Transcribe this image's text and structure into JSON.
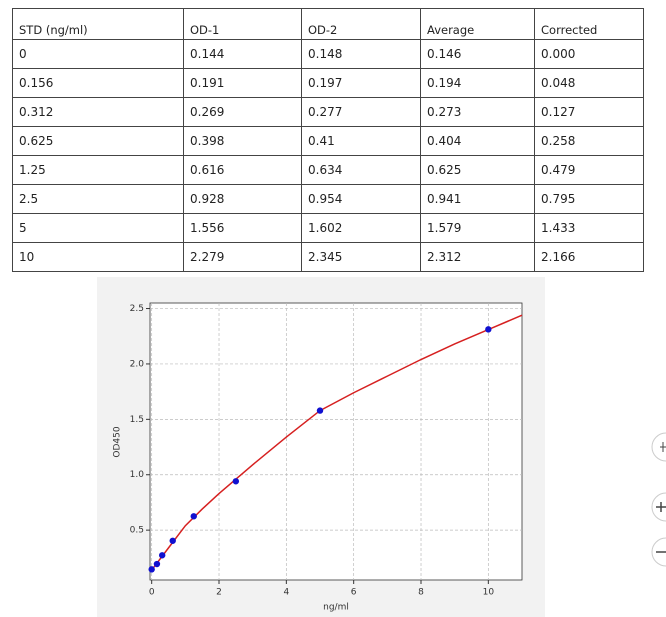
{
  "table": {
    "header": [
      "STD (ng/ml)",
      "OD-1",
      "OD-2",
      "Average",
      "Corrected"
    ],
    "rows": [
      [
        "0",
        "0.144",
        "0.148",
        "0.146",
        "0.000"
      ],
      [
        "0.156",
        "0.191",
        "0.197",
        "0.194",
        "0.048"
      ],
      [
        "0.312",
        "0.269",
        "0.277",
        "0.273",
        "0.127"
      ],
      [
        "0.625",
        "0.398",
        "0.41",
        "0.404",
        "0.258"
      ],
      [
        "1.25",
        "0.616",
        "0.634",
        "0.625",
        "0.479"
      ],
      [
        "2.5",
        "0.928",
        "0.954",
        "0.941",
        "0.795"
      ],
      [
        "5",
        "1.556",
        "1.602",
        "1.579",
        "1.433"
      ],
      [
        "10",
        "2.279",
        "2.345",
        "2.312",
        "2.166"
      ]
    ]
  },
  "chart_data": {
    "type": "scatter",
    "x_label": "ng/ml",
    "y_label": "OD450",
    "xlim": [
      -0.05,
      11
    ],
    "ylim": [
      0.05,
      2.55
    ],
    "xticks": [
      0,
      2,
      4,
      6,
      8,
      10
    ],
    "yticks": [
      0.5,
      {
        "value": 1,
        "label": "1.0"
      },
      1.5,
      {
        "value": 2,
        "label": "2.0"
      },
      2.5
    ],
    "grid": true,
    "series": [
      {
        "type": "scatter",
        "color": "#1010d0",
        "x": [
          0,
          0.156,
          0.312,
          0.625,
          1.25,
          2.5,
          5,
          10
        ],
        "values": [
          0.146,
          0.194,
          0.273,
          0.404,
          0.625,
          0.941,
          1.579,
          2.312
        ]
      },
      {
        "type": "line",
        "color": "#d62020",
        "x": [
          0,
          0.5,
          1,
          1.5,
          2,
          3,
          4,
          5,
          6,
          7,
          8,
          9,
          10,
          11
        ],
        "values": [
          0.14,
          0.34,
          0.54,
          0.69,
          0.83,
          1.09,
          1.34,
          1.579,
          1.74,
          1.89,
          2.04,
          2.18,
          2.31,
          2.44
        ]
      }
    ]
  }
}
